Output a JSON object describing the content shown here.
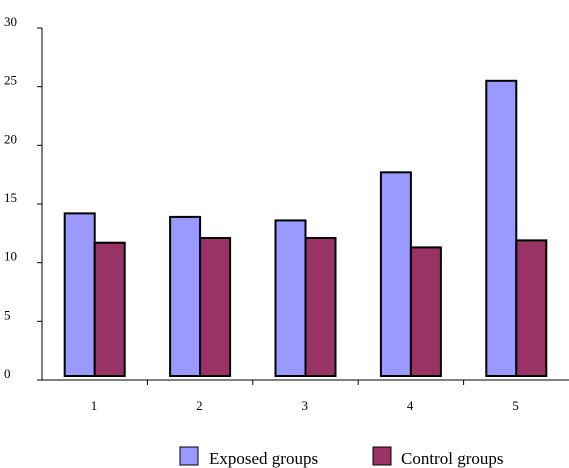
{
  "chart_data": {
    "type": "bar",
    "categories": [
      "1",
      "2",
      "3",
      "4",
      "5"
    ],
    "series": [
      {
        "name": "Exposed groups",
        "values": [
          14.2,
          13.9,
          13.6,
          17.7,
          25.5
        ],
        "color": "#9999ff"
      },
      {
        "name": "Control groups",
        "values": [
          11.7,
          12.1,
          12.1,
          11.3,
          11.9
        ],
        "color": "#993366"
      }
    ],
    "y_ticks": [
      "0",
      "5",
      "10",
      "15",
      "20",
      "25",
      "30"
    ],
    "ylim": [
      0,
      30
    ],
    "grid": false,
    "legend_position": "bottom",
    "title": "",
    "xlabel": "",
    "ylabel": ""
  }
}
